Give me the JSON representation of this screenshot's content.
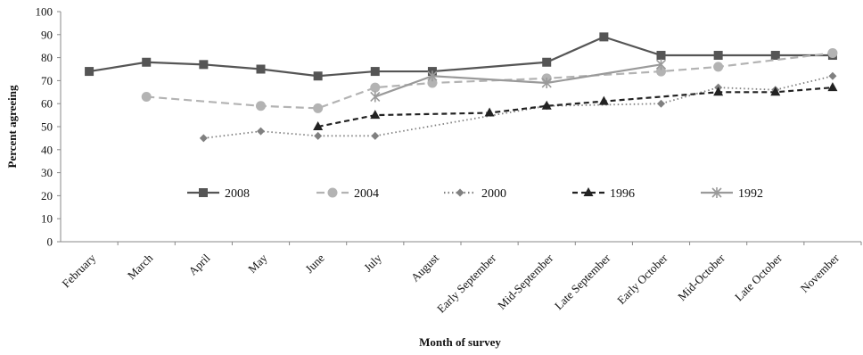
{
  "chart_data": {
    "type": "line",
    "xlabel": "Month of survey",
    "ylabel": "Percent agreeing",
    "ylim": [
      0,
      100
    ],
    "yticks": [
      0,
      10,
      20,
      30,
      40,
      50,
      60,
      70,
      80,
      90,
      100
    ],
    "grid": false,
    "legend_position": "inside-bottom",
    "categories": [
      "February",
      "March",
      "April",
      "May",
      "June",
      "July",
      "August",
      "Early September",
      "Mid-September",
      "Late September",
      "Early October",
      "Mid-October",
      "Late October",
      "November"
    ],
    "series": [
      {
        "name": "2008",
        "color": "#555555",
        "dash": "solid",
        "marker": "square",
        "values": [
          74,
          78,
          77,
          75,
          72,
          74,
          74,
          null,
          78,
          89,
          81,
          81,
          81,
          81
        ]
      },
      {
        "name": "2004",
        "color": "#b3b3b3",
        "dash": "long-dash",
        "marker": "circle",
        "values": [
          null,
          63,
          null,
          59,
          58,
          67,
          69,
          null,
          71,
          null,
          74,
          76,
          null,
          82
        ]
      },
      {
        "name": "2000",
        "color": "#808080",
        "dash": "dotted",
        "marker": "diamond",
        "values": [
          null,
          null,
          45,
          48,
          46,
          46,
          null,
          null,
          59,
          null,
          60,
          67,
          66,
          72
        ]
      },
      {
        "name": "1996",
        "color": "#222222",
        "dash": "short-dash",
        "marker": "triangle",
        "values": [
          null,
          null,
          null,
          null,
          50,
          55,
          null,
          56,
          59,
          61,
          null,
          65,
          65,
          67
        ]
      },
      {
        "name": "1992",
        "color": "#9a9a9a",
        "dash": "solid",
        "marker": "star",
        "values": [
          null,
          null,
          null,
          null,
          null,
          63,
          72,
          null,
          69,
          null,
          77,
          null,
          null,
          null
        ]
      }
    ]
  }
}
